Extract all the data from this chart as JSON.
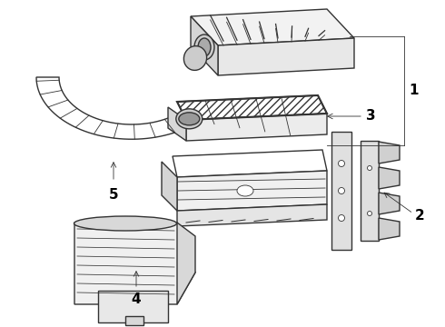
{
  "background_color": "#ffffff",
  "line_color": "#333333",
  "label_color": "#000000",
  "figure_width": 4.9,
  "figure_height": 3.6,
  "dpi": 100,
  "label_fontsize": 10,
  "label_fontweight": "bold"
}
